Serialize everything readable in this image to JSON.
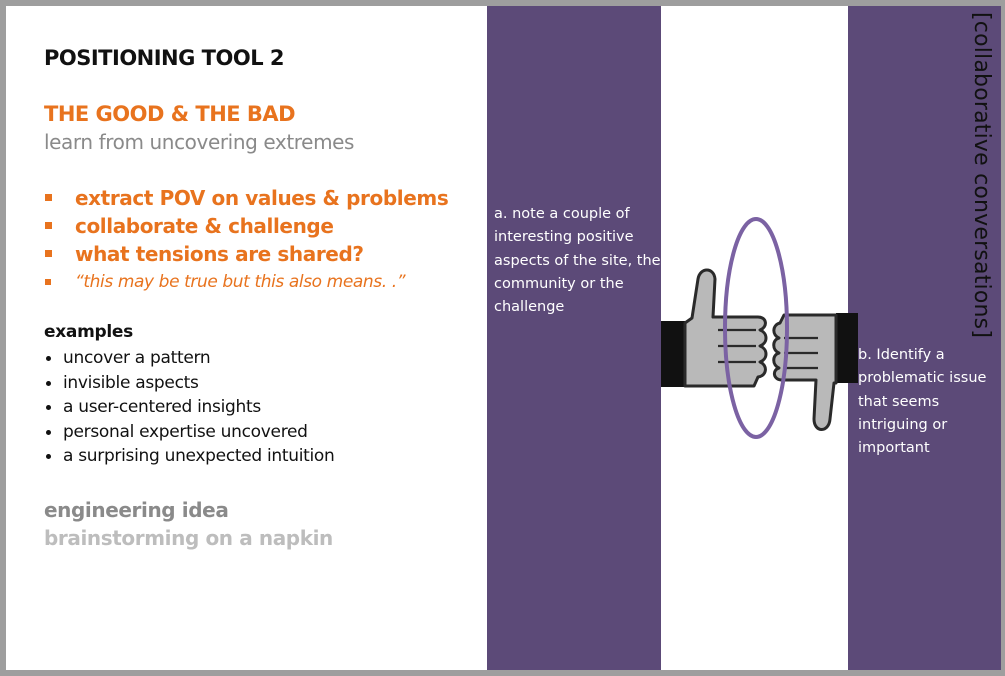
{
  "slide": {
    "title": "POSITIONING TOOL 2",
    "heading": "THE GOOD & THE BAD",
    "subheading": "learn from uncovering extremes",
    "key_points": [
      "extract POV on values & problems",
      "collaborate & challenge",
      "what tensions are shared?",
      "“this may be true but this also means.  .”"
    ],
    "examples_title": "examples",
    "examples": [
      "uncover a pattern",
      "invisible aspects",
      "a user-centered insights",
      "personal expertise uncovered",
      "a surprising unexpected intuition"
    ],
    "engineering_idea": "engineering idea",
    "brainstorming": "brainstorming on a napkin"
  },
  "panels": {
    "note_a": "a. note a couple of interesting positive aspects of the site, the community or the challenge",
    "note_b": "b. Identify a problematic issue that seems intriguing or important",
    "vertical_label": "[collaborative conversations]"
  },
  "icons": {
    "illustration": "thumbs-up-thumbs-down-icon"
  },
  "colors": {
    "accent_orange": "#e8731e",
    "panel_purple": "#5c4a78",
    "ellipse_purple": "#7b62a3",
    "muted_gray": "#8a8a8a",
    "light_gray": "#bdbdbd",
    "frame_gray": "#9e9e9e"
  }
}
